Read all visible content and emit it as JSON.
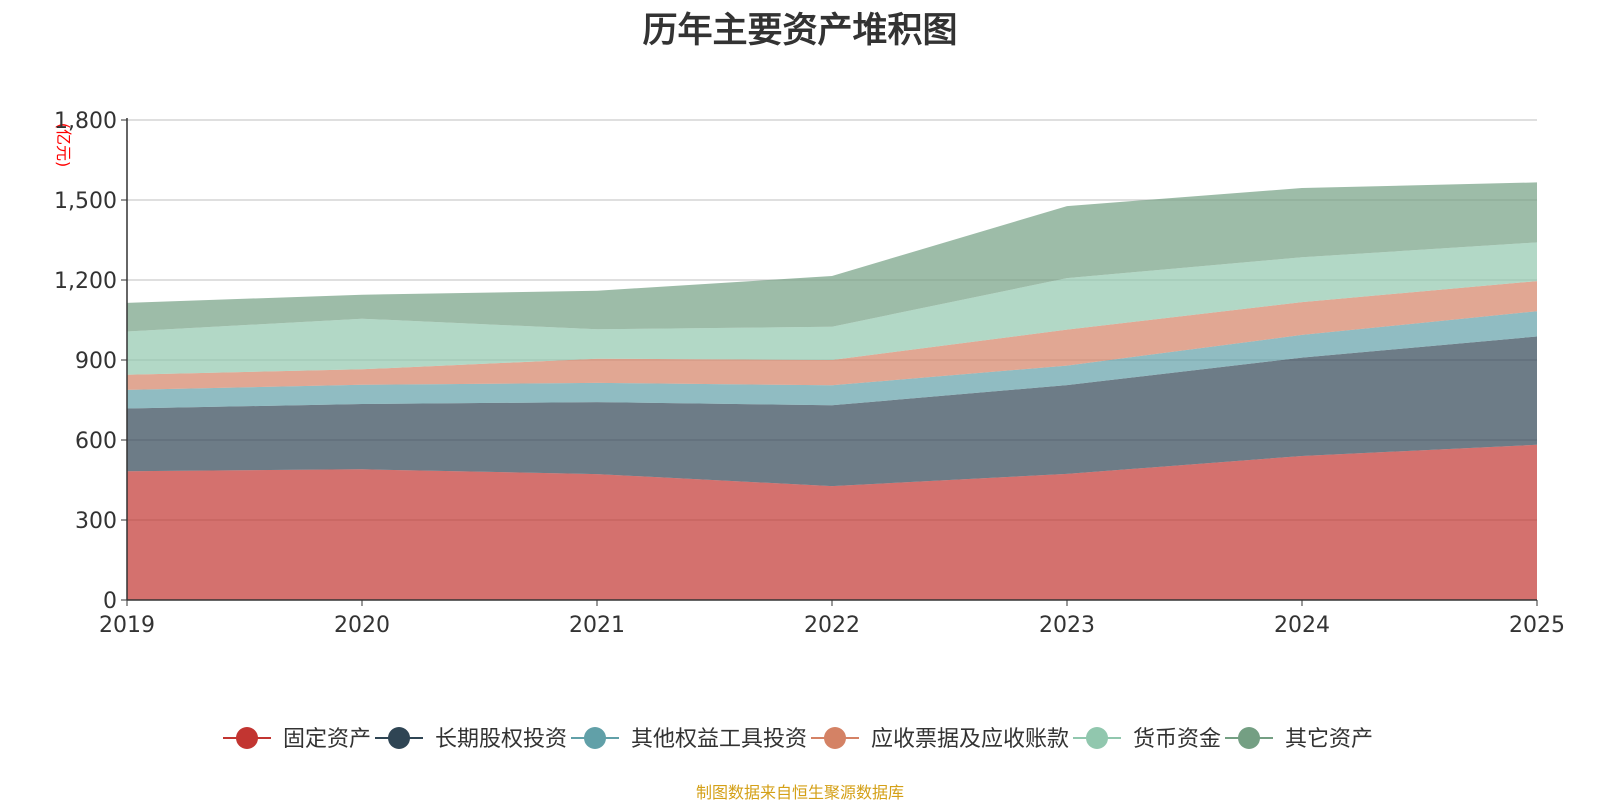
{
  "chart_data": {
    "type": "area",
    "stacked": true,
    "title": "历年主要资产堆积图",
    "ylabel": "(亿元)",
    "xlabel": "",
    "categories": [
      "2019",
      "2020",
      "2021",
      "2022",
      "2023",
      "2024",
      "2025"
    ],
    "ylim": [
      0,
      1800
    ],
    "yticks": [
      "0",
      "300",
      "600",
      "900",
      "1,200",
      "1,500",
      "1,800"
    ],
    "grid": true,
    "legend_position": "bottom",
    "series": [
      {
        "name": "固定资产",
        "color": "#c23531",
        "values": [
          483,
          490,
          472,
          427,
          473,
          540,
          582
        ]
      },
      {
        "name": "长期股权投资",
        "color": "#2f4554",
        "values": [
          235,
          245,
          270,
          303,
          333,
          369,
          406
        ]
      },
      {
        "name": "其他权益工具投资",
        "color": "#61a0a8",
        "values": [
          70,
          72,
          72,
          75,
          73,
          85,
          95
        ]
      },
      {
        "name": "应收票据及应收账款",
        "color": "#d48265",
        "values": [
          57,
          58,
          91,
          95,
          135,
          123,
          113
        ]
      },
      {
        "name": "货币资金",
        "color": "#91c7ae",
        "values": [
          162,
          190,
          110,
          125,
          193,
          168,
          145
        ]
      },
      {
        "name": "其它资产",
        "color": "#749f83",
        "values": [
          107,
          90,
          145,
          190,
          270,
          260,
          225
        ]
      }
    ]
  },
  "footer": {
    "source": "制图数据来自恒生聚源数据库"
  }
}
